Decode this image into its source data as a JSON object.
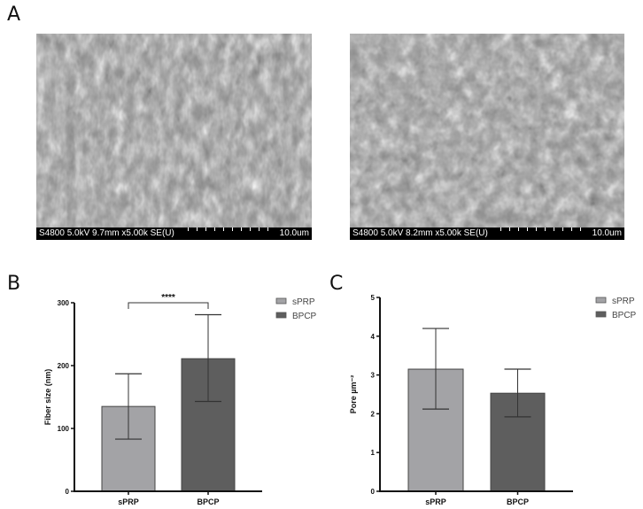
{
  "panels": {
    "A": {
      "letter": "A",
      "images": [
        {
          "meta": "S4800 5.0kV 9.7mm x5.00k SE(U)",
          "scale": "10.0um"
        },
        {
          "meta": "S4800 5.0kV 8.2mm x5.00k SE(U)",
          "scale": "10.0um"
        }
      ]
    },
    "B": {
      "letter": "B"
    },
    "C": {
      "letter": "C"
    }
  },
  "colors": {
    "sPRP": "#a3a3a6",
    "BPCP": "#5e5e5e",
    "axis": "#111111",
    "errorbar": "#333333"
  },
  "chart_data": [
    {
      "panel": "B",
      "type": "bar",
      "categories": [
        "sPRP",
        "BPCP"
      ],
      "values": [
        135,
        211
      ],
      "error_low": [
        83,
        143
      ],
      "error_high": [
        187,
        281
      ],
      "title": "",
      "xlabel": "",
      "ylabel": "Fiber size (nm)",
      "ylim": [
        0,
        300
      ],
      "yticks": [
        0,
        100,
        200,
        300
      ],
      "legend": [
        "sPRP",
        "BPCP"
      ],
      "legend_position": "right",
      "annotations": [
        {
          "type": "significance",
          "between": [
            "sPRP",
            "BPCP"
          ],
          "label": "****"
        }
      ],
      "grid": false
    },
    {
      "panel": "C",
      "type": "bar",
      "categories": [
        "sPRP",
        "BPCP"
      ],
      "values": [
        3.15,
        2.53
      ],
      "error_low": [
        2.12,
        1.92
      ],
      "error_high": [
        4.2,
        3.15
      ],
      "title": "",
      "xlabel": "",
      "ylabel": "Pore µm⁻²",
      "ylim": [
        0,
        5
      ],
      "yticks": [
        0,
        1,
        2,
        3,
        4,
        5
      ],
      "legend": [
        "sPRP",
        "BPCP"
      ],
      "legend_position": "right",
      "annotations": [],
      "grid": false
    }
  ]
}
